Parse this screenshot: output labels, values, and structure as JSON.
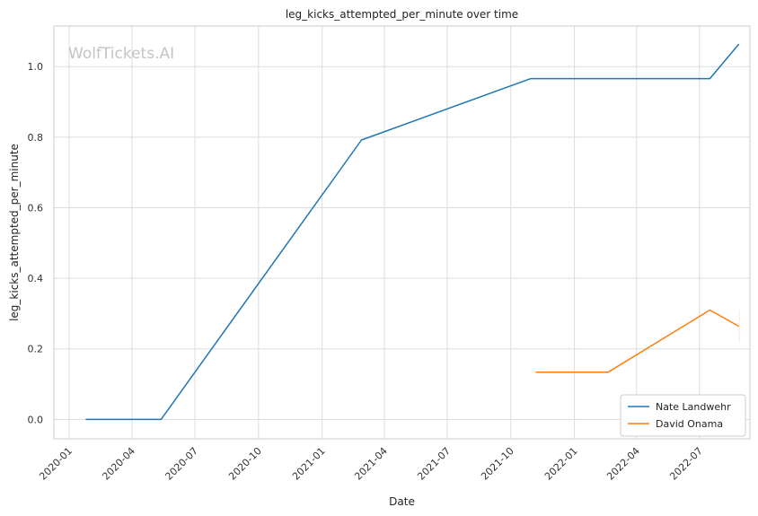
{
  "chart_data": {
    "type": "line",
    "title": "leg_kicks_attempted_per_minute over time",
    "xlabel": "Date",
    "ylabel": "leg_kicks_attempted_per_minute",
    "watermark": "WolfTickets.AI",
    "xlim": [
      "2019-12-10",
      "2022-09-12"
    ],
    "ylim": [
      -0.055,
      1.115
    ],
    "x_ticks": [
      "2020-01",
      "2020-04",
      "2020-07",
      "2020-10",
      "2021-01",
      "2021-04",
      "2021-07",
      "2021-10",
      "2022-01",
      "2022-04",
      "2022-07"
    ],
    "y_ticks": [
      0.0,
      0.2,
      0.4,
      0.6,
      0.8,
      1.0
    ],
    "y_tick_labels": [
      "0.0",
      "0.2",
      "0.4",
      "0.6",
      "0.8",
      "1.0"
    ],
    "grid": true,
    "legend_position": "lower-right",
    "series": [
      {
        "name": "Nate Landwehr",
        "color": "#1f77b4",
        "points": [
          {
            "x": "2020-01-25",
            "y": 0.0
          },
          {
            "x": "2020-05-13",
            "y": 0.0
          },
          {
            "x": "2021-02-27",
            "y": 0.792
          },
          {
            "x": "2021-10-30",
            "y": 0.966
          },
          {
            "x": "2022-07-16",
            "y": 0.966
          },
          {
            "x": "2022-08-27",
            "y": 1.064
          }
        ]
      },
      {
        "name": "David Onama",
        "color": "#ff7f0e",
        "points": [
          {
            "x": "2021-11-06",
            "y": 0.134
          },
          {
            "x": "2022-02-19",
            "y": 0.134
          },
          {
            "x": "2022-07-16",
            "y": 0.31
          },
          {
            "x": "2022-08-27",
            "y": 0.264
          }
        ]
      }
    ]
  }
}
